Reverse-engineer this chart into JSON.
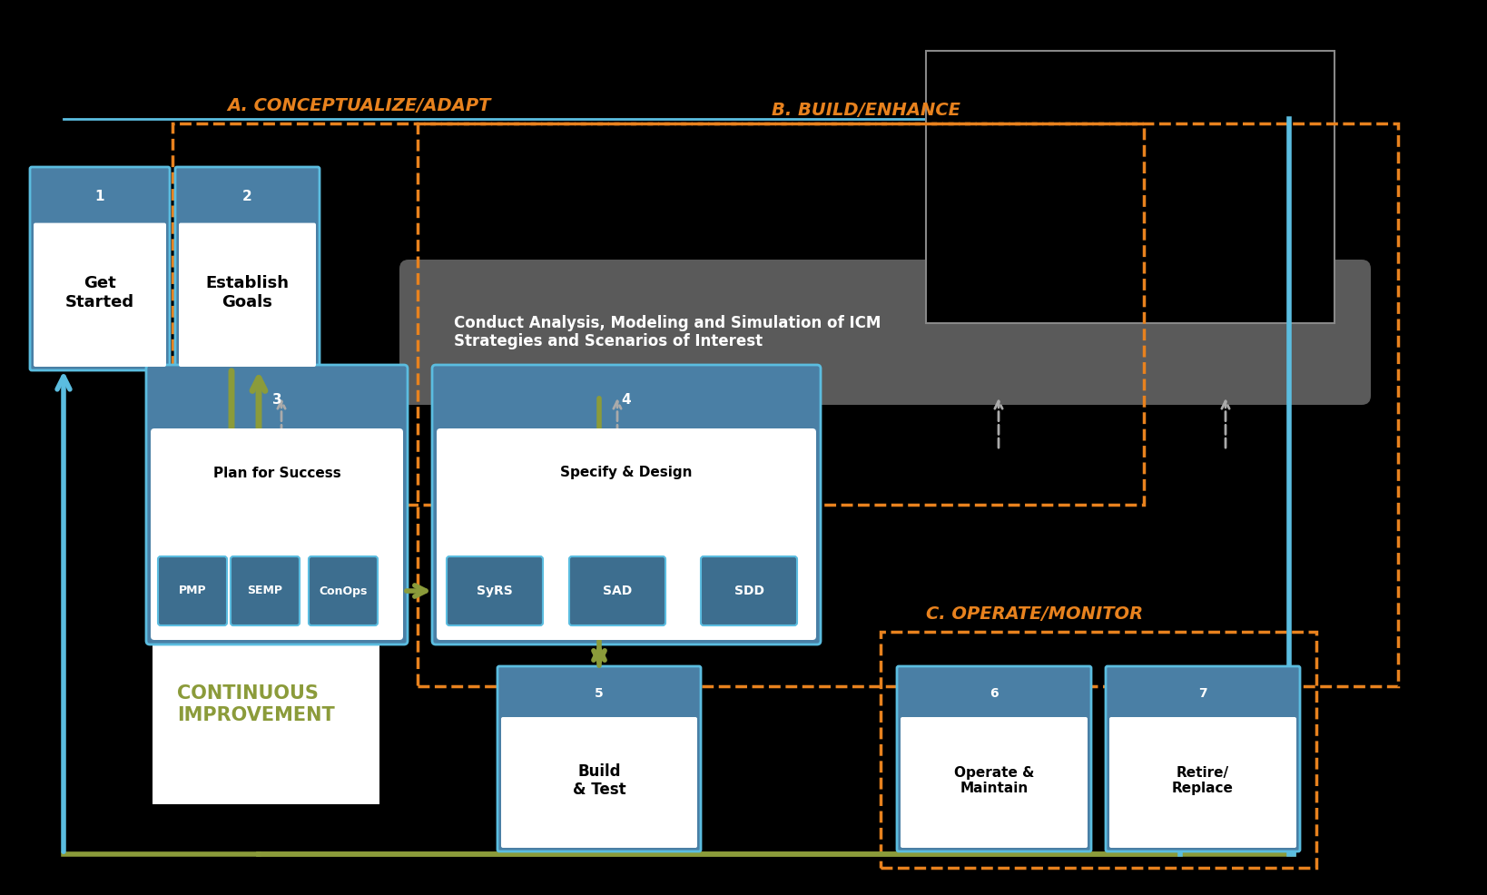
{
  "bg_color": "#000000",
  "fig_width": 16.38,
  "fig_height": 9.86,
  "phase_a_label": "A. CONCEPTUALIZE/ADAPT",
  "phase_b_label": "B. BUILD/ENHANCE",
  "phase_c_label": "C. OPERATE/MONITOR",
  "continuous_label": "CONTINUOUS\nIMPROVEMENT",
  "analysis_box_text": "Conduct Analysis, Modeling and Simulation of ICM\nStrategies and Scenarios of Interest",
  "node1_num": "1",
  "node1_text": "Get\nStarted",
  "node2_num": "2",
  "node2_text": "Establish\nGoals",
  "node3_num": "3",
  "node3_text": "Plan for Success",
  "node3_sub": [
    "PMP",
    "SEMP",
    "ConOps"
  ],
  "node4_num": "4",
  "node4_text": "Specify & Design",
  "node4_sub": [
    "SyRS",
    "SAD",
    "SDD"
  ],
  "node5_num": "5",
  "node5_text": "Build\n& Test",
  "node6_num": "6",
  "node6_text": "Operate &\nMaintain",
  "node7_num": "7",
  "node7_text": "Retire/\nReplace",
  "orange": "#E8821E",
  "blue_header": "#4A7FA5",
  "blue_box": "#3D6E8F",
  "blue_light": "#5B9BC8",
  "olive": "#8B9B3A",
  "gray_analysis": "#5A5A5A",
  "white": "#FFFFFF",
  "black": "#000000",
  "light_blue_border": "#5BBDE0",
  "gray_arrow": "#AAAAAA"
}
